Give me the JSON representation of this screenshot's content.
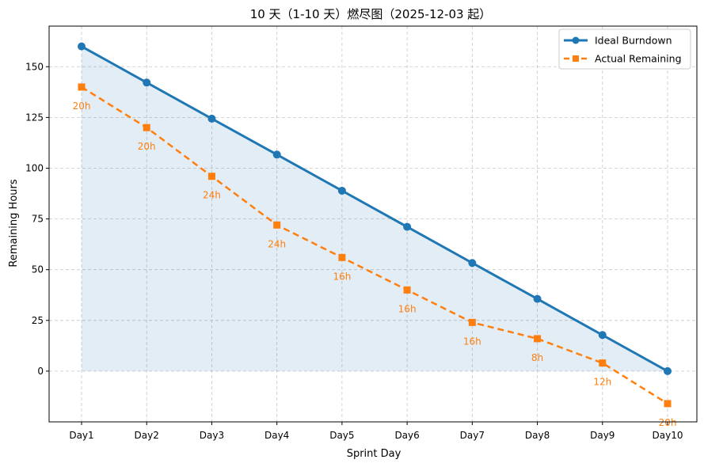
{
  "chart_data": {
    "type": "line",
    "title": "10 天（1-10 天）燃尽图（2025-12-03 起）",
    "xlabel": "Sprint Day",
    "ylabel": "Remaining Hours",
    "categories": [
      "Day1",
      "Day2",
      "Day3",
      "Day4",
      "Day5",
      "Day6",
      "Day7",
      "Day8",
      "Day9",
      "Day10"
    ],
    "ylim": [
      -25,
      170
    ],
    "yticks": [
      0,
      25,
      50,
      75,
      100,
      125,
      150
    ],
    "grid": true,
    "legend_position": "top-right",
    "series": [
      {
        "name": "Ideal Burndown",
        "color": "#1f77b4",
        "style": "solid",
        "marker": "circle",
        "fill_to_zero": true,
        "values": [
          160,
          142.2,
          124.4,
          106.7,
          88.9,
          71.1,
          53.3,
          35.6,
          17.8,
          0
        ]
      },
      {
        "name": "Actual Remaining",
        "color": "#ff7f0e",
        "style": "dashed",
        "marker": "square",
        "values": [
          140,
          120,
          96,
          72,
          56,
          40,
          24,
          16,
          4,
          -16
        ],
        "labels": [
          "20h",
          "20h",
          "24h",
          "24h",
          "16h",
          "16h",
          "16h",
          "8h",
          "12h",
          "20h"
        ]
      }
    ]
  }
}
